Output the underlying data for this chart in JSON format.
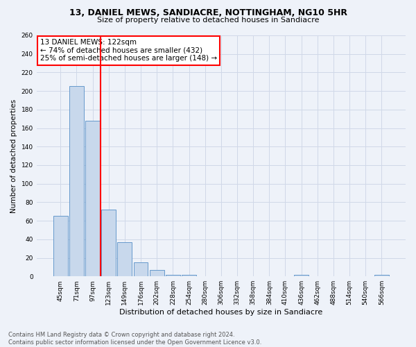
{
  "title": "13, DANIEL MEWS, SANDIACRE, NOTTINGHAM, NG10 5HR",
  "subtitle": "Size of property relative to detached houses in Sandiacre",
  "xlabel": "Distribution of detached houses by size in Sandiacre",
  "ylabel": "Number of detached properties",
  "bar_labels": [
    "45sqm",
    "71sqm",
    "97sqm",
    "123sqm",
    "149sqm",
    "176sqm",
    "202sqm",
    "228sqm",
    "254sqm",
    "280sqm",
    "306sqm",
    "332sqm",
    "358sqm",
    "384sqm",
    "410sqm",
    "436sqm",
    "462sqm",
    "488sqm",
    "514sqm",
    "540sqm",
    "566sqm"
  ],
  "bar_values": [
    65,
    205,
    168,
    72,
    37,
    15,
    7,
    2,
    2,
    0,
    0,
    0,
    0,
    0,
    0,
    2,
    0,
    0,
    0,
    0,
    2
  ],
  "bar_color": "#c8d8ec",
  "bar_edge_color": "#6699cc",
  "vline_index": 2.5,
  "annotation_text": "13 DANIEL MEWS: 122sqm\n← 74% of detached houses are smaller (432)\n25% of semi-detached houses are larger (148) →",
  "footer": "Contains HM Land Registry data © Crown copyright and database right 2024.\nContains public sector information licensed under the Open Government Licence v3.0.",
  "ylim": [
    0,
    260
  ],
  "yticks": [
    0,
    20,
    40,
    60,
    80,
    100,
    120,
    140,
    160,
    180,
    200,
    220,
    240,
    260
  ],
  "bg_color": "#eef2f9",
  "grid_color": "#d0d8e8",
  "title_fontsize": 9,
  "subtitle_fontsize": 8,
  "ylabel_fontsize": 7.5,
  "xlabel_fontsize": 8,
  "tick_fontsize": 6.5,
  "footer_fontsize": 6,
  "annot_fontsize": 7.5
}
